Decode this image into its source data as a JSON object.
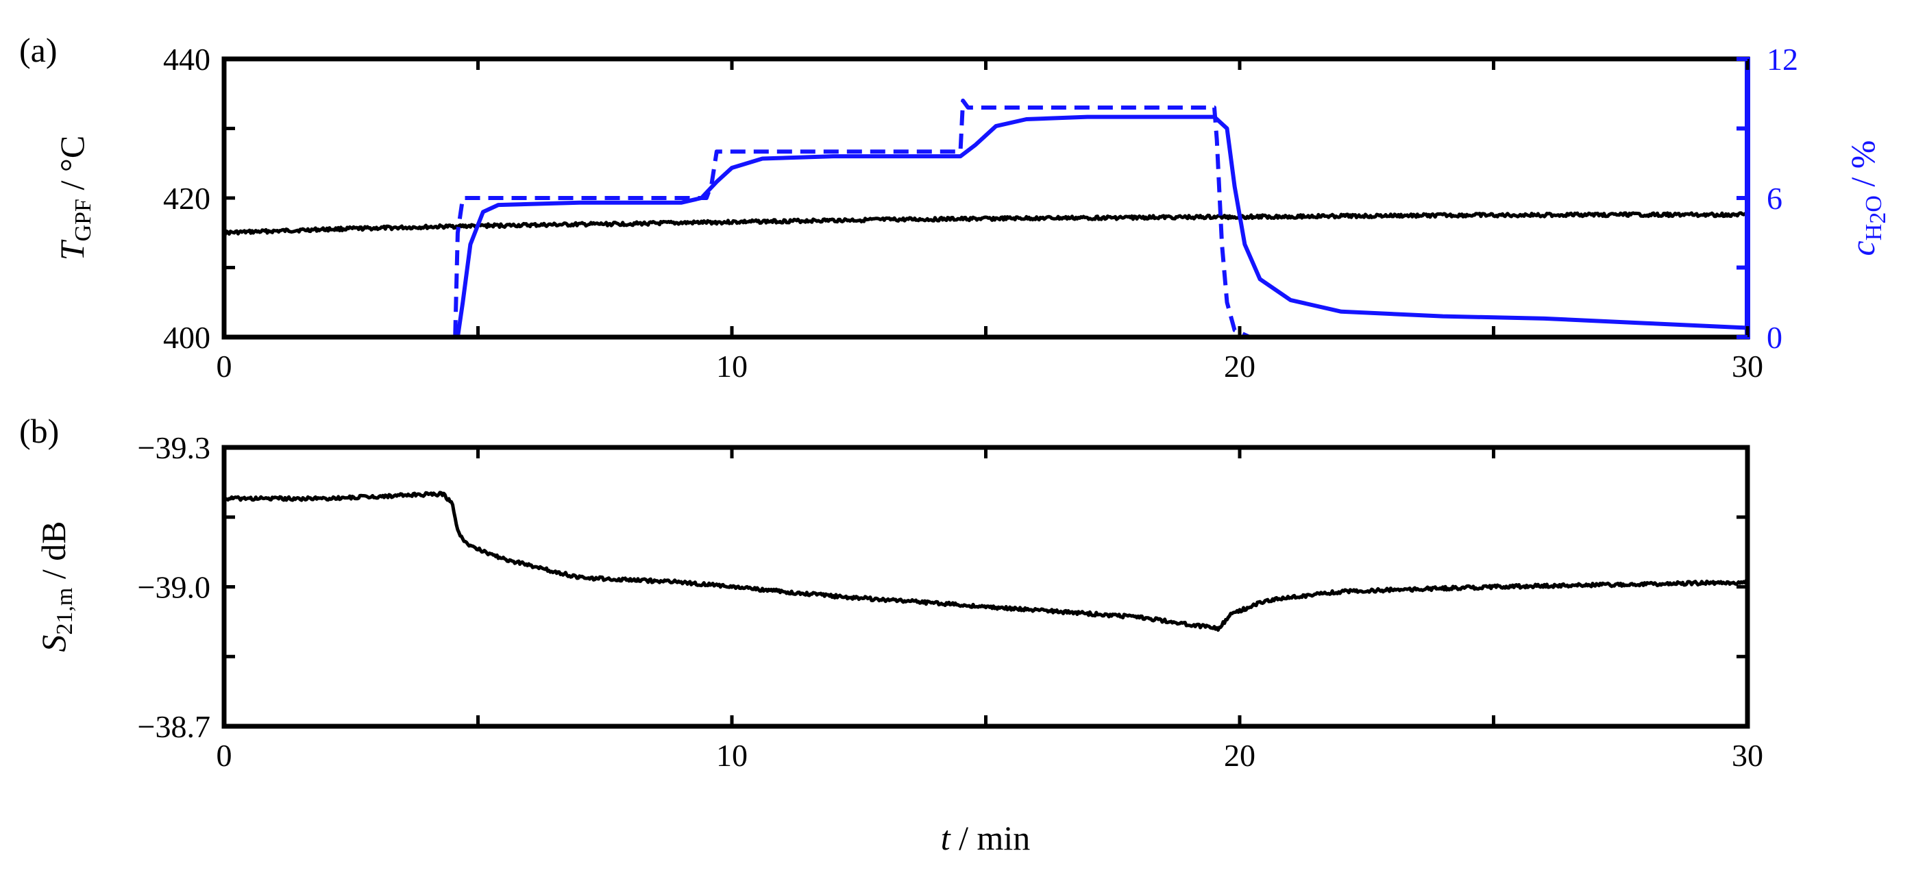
{
  "chart_data": [
    {
      "panel_label": "(a)",
      "type": "line",
      "x_range": [
        0,
        30
      ],
      "x_ticks": [
        0,
        10,
        20,
        30
      ],
      "ylabel": {
        "symbol": "T",
        "subscript": "GPF",
        "unit": " / °C"
      },
      "ylim": [
        400,
        440
      ],
      "y_ticks": [
        400,
        420,
        440
      ],
      "y2label": {
        "symbol": "c",
        "subscript": "H",
        "subscript2": "2",
        "subscript3": "O",
        "unit": " / %"
      },
      "y2lim": [
        0,
        12
      ],
      "y2_ticks": [
        0,
        6,
        12
      ],
      "colors": {
        "temperature": "#000000",
        "water": "#1414ff"
      },
      "series": [
        {
          "axis": "left",
          "style": "solid",
          "color": "#000000",
          "points": [
            [
              0,
              415.0
            ],
            [
              2,
              415.5
            ],
            [
              5,
              416.0
            ],
            [
              8,
              416.3
            ],
            [
              12,
              416.8
            ],
            [
              16,
              417.1
            ],
            [
              20,
              417.3
            ],
            [
              24,
              417.5
            ],
            [
              27,
              417.6
            ],
            [
              30,
              417.6
            ]
          ]
        },
        {
          "axis": "right",
          "style": "dashed",
          "color": "#1414ff",
          "points": [
            [
              0,
              0
            ],
            [
              4.55,
              0
            ],
            [
              4.6,
              4.5
            ],
            [
              4.7,
              6.0
            ],
            [
              9.5,
              6.0
            ],
            [
              9.6,
              6.6
            ],
            [
              9.7,
              8.0
            ],
            [
              14.5,
              8.0
            ],
            [
              14.55,
              10.2
            ],
            [
              14.65,
              9.9
            ],
            [
              15.0,
              9.9
            ],
            [
              19.5,
              9.9
            ],
            [
              19.55,
              8.5
            ],
            [
              19.65,
              4.0
            ],
            [
              19.75,
              1.5
            ],
            [
              19.9,
              0.3
            ],
            [
              20.2,
              0
            ],
            [
              30,
              0
            ]
          ]
        },
        {
          "axis": "right",
          "style": "solid",
          "color": "#1414ff",
          "points": [
            [
              0,
              0
            ],
            [
              4.6,
              0
            ],
            [
              4.7,
              1.5
            ],
            [
              4.85,
              4.0
            ],
            [
              5.1,
              5.4
            ],
            [
              5.4,
              5.7
            ],
            [
              7.0,
              5.8
            ],
            [
              9.0,
              5.8
            ],
            [
              9.4,
              6.0
            ],
            [
              9.7,
              6.7
            ],
            [
              10.0,
              7.3
            ],
            [
              10.6,
              7.7
            ],
            [
              12.0,
              7.8
            ],
            [
              14.5,
              7.8
            ],
            [
              14.8,
              8.3
            ],
            [
              15.2,
              9.1
            ],
            [
              15.8,
              9.4
            ],
            [
              17.0,
              9.5
            ],
            [
              19.5,
              9.5
            ],
            [
              19.75,
              9.0
            ],
            [
              19.9,
              6.5
            ],
            [
              20.1,
              4.0
            ],
            [
              20.4,
              2.5
            ],
            [
              21.0,
              1.6
            ],
            [
              22.0,
              1.1
            ],
            [
              24.0,
              0.9
            ],
            [
              26.0,
              0.8
            ],
            [
              28.0,
              0.6
            ],
            [
              30.0,
              0.4
            ]
          ]
        }
      ]
    },
    {
      "panel_label": "(b)",
      "type": "line",
      "x_range": [
        0,
        30
      ],
      "x_ticks": [
        0,
        10,
        20,
        30
      ],
      "xlabel": {
        "symbol": "t",
        "unit": " / min"
      },
      "ylabel": {
        "symbol": "S",
        "subscript": "21,m",
        "unit": " / dB"
      },
      "ylim": [
        -38.7,
        -39.3
      ],
      "y_ticks": [
        -39.3,
        -39.0,
        -38.7
      ],
      "y_tick_labels": [
        "−39.3",
        "−39.0",
        "−38.7"
      ],
      "series": [
        {
          "style": "solid",
          "color": "#000000",
          "points": [
            [
              0,
              -39.19
            ],
            [
              2,
              -39.19
            ],
            [
              4.3,
              -39.2
            ],
            [
              4.5,
              -39.18
            ],
            [
              4.6,
              -39.12
            ],
            [
              4.8,
              -39.09
            ],
            [
              5.5,
              -39.06
            ],
            [
              7.0,
              -39.02
            ],
            [
              9.0,
              -39.01
            ],
            [
              10.0,
              -39.0
            ],
            [
              12.0,
              -38.98
            ],
            [
              14.0,
              -38.965
            ],
            [
              16.0,
              -38.95
            ],
            [
              18.0,
              -38.935
            ],
            [
              19.6,
              -38.91
            ],
            [
              19.8,
              -38.94
            ],
            [
              20.5,
              -38.97
            ],
            [
              22.0,
              -38.99
            ],
            [
              25.0,
              -39.0
            ],
            [
              30.0,
              -39.01
            ]
          ]
        }
      ]
    }
  ]
}
